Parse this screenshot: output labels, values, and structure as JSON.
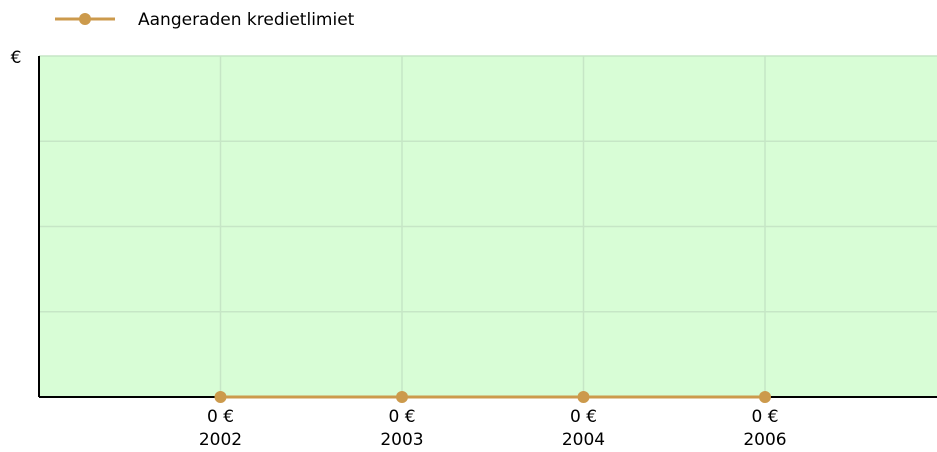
{
  "chart_data": {
    "type": "line",
    "y_label": "€",
    "categories": [
      "2002",
      "2003",
      "2004",
      "2006"
    ],
    "series": [
      {
        "name": "Aangeraden kredietlimiet",
        "color": "#cc9a4c",
        "values": [
          0,
          0,
          0,
          0
        ],
        "value_labels": [
          "0 €",
          "0 €",
          "0 €",
          "0 €"
        ]
      }
    ],
    "ylim": [
      0,
      4
    ],
    "yticks": [
      0,
      1,
      2,
      3,
      4
    ],
    "grid": true,
    "legend": "top"
  }
}
